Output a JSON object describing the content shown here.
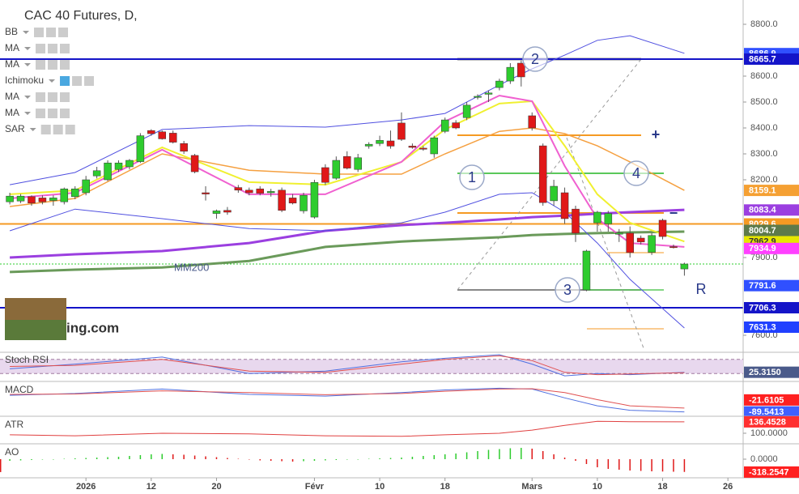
{
  "chart_data": {
    "type": "candlestick",
    "title": "CAC 40 Futures, D,",
    "indicators": [
      "BB",
      "MA",
      "MA",
      "Ichimoku",
      "MA",
      "MA",
      "SAR"
    ],
    "x": [
      0,
      1,
      2,
      3,
      4,
      5,
      6,
      7,
      8,
      9,
      10,
      11,
      12,
      13,
      14,
      15,
      16,
      17,
      18,
      19,
      20,
      21,
      22,
      23,
      24,
      25,
      26,
      27,
      28,
      29,
      30,
      31,
      32,
      33,
      34,
      35,
      36,
      37,
      38,
      39,
      40,
      41,
      42,
      43,
      44,
      45,
      46,
      47,
      48,
      49,
      50,
      51,
      52,
      53,
      54,
      55,
      56,
      57,
      58,
      59,
      60,
      61,
      62
    ],
    "open": [
      8115,
      8118,
      8135,
      8130,
      8120,
      8115,
      8135,
      8150,
      8215,
      8200,
      8240,
      8250,
      8270,
      8390,
      8385,
      8380,
      8340,
      8294,
      8150,
      8070,
      8082,
      8170,
      8160,
      8165,
      8150,
      8160,
      8130,
      8080,
      8056,
      8247,
      8206,
      8290,
      8240,
      8330,
      8340,
      8350,
      8419,
      8330,
      8322,
      8300,
      8387,
      8420,
      8440,
      8518,
      8530,
      8556,
      8581,
      8650,
      8447,
      8331,
      8119,
      8150,
      8087,
      7775,
      8034,
      8030,
      7990,
      7994,
      7975,
      7920,
      8044,
      7942,
      7856
    ],
    "high": [
      8150,
      8145,
      8140,
      8140,
      8140,
      8170,
      8175,
      8215,
      8250,
      8275,
      8275,
      8280,
      8380,
      8395,
      8390,
      8390,
      8350,
      8300,
      8175,
      8085,
      8095,
      8180,
      8170,
      8175,
      8165,
      8170,
      8145,
      8150,
      8200,
      8260,
      8290,
      8310,
      8300,
      8345,
      8370,
      8390,
      8460,
      8340,
      8330,
      8370,
      8440,
      8430,
      8500,
      8530,
      8545,
      8590,
      8650,
      8660,
      8460,
      8340,
      8200,
      8170,
      8100,
      7930,
      8080,
      8080,
      8010,
      8020,
      7985,
      7995,
      8050,
      7950,
      7880
    ],
    "low": [
      8105,
      8110,
      8100,
      8105,
      8100,
      8105,
      8125,
      8140,
      8205,
      8195,
      8230,
      8240,
      8265,
      8370,
      8355,
      8340,
      8300,
      8225,
      8120,
      8050,
      8065,
      8150,
      8140,
      8140,
      8135,
      8075,
      8105,
      8070,
      8050,
      8180,
      8200,
      8240,
      8230,
      8320,
      8330,
      8320,
      8350,
      8320,
      8312,
      8285,
      8380,
      8395,
      8430,
      8510,
      8500,
      8545,
      8570,
      8560,
      8390,
      8100,
      8100,
      8030,
      7960,
      7770,
      8000,
      8000,
      7960,
      7900,
      7950,
      7910,
      7970,
      7935,
      7830
    ],
    "close": [
      8137,
      8137,
      8110,
      8115,
      8130,
      8165,
      8165,
      8200,
      8235,
      8265,
      8265,
      8275,
      8370,
      8378,
      8358,
      8345,
      8310,
      8231,
      8145,
      8080,
      8075,
      8160,
      8150,
      8148,
      8155,
      8082,
      8110,
      8140,
      8190,
      8190,
      8275,
      8245,
      8285,
      8337,
      8352,
      8330,
      8356,
      8325,
      8318,
      8362,
      8431,
      8400,
      8488,
      8522,
      8535,
      8581,
      8634,
      8597,
      8400,
      8112,
      8175,
      8050,
      7994,
      7925,
      8075,
      8070,
      7995,
      7919,
      7960,
      7985,
      7981,
      7938,
      7875
    ],
    "up_color": "#2ecc2e",
    "down_color": "#e01818",
    "xlim": [
      -0.9,
      67.4
    ],
    "xticks": [
      {
        "value": 7,
        "label": "2026"
      },
      {
        "value": 13,
        "label": "12"
      },
      {
        "value": 19,
        "label": "20"
      },
      {
        "value": 28,
        "label": "Févr"
      },
      {
        "value": 34,
        "label": "10"
      },
      {
        "value": 40,
        "label": "18"
      },
      {
        "value": 48,
        "label": "Mars"
      },
      {
        "value": 54,
        "label": "10"
      },
      {
        "value": 60,
        "label": "18"
      },
      {
        "value": 66,
        "label": "26"
      }
    ],
    "ylim": [
      7550,
      8893.75
    ],
    "yticks": [
      {
        "value": 8800,
        "label": "8800.0"
      },
      {
        "value": 8600,
        "label": "8600.0"
      },
      {
        "value": 8500,
        "label": "8500.0"
      },
      {
        "value": 8400,
        "label": "8400.0"
      },
      {
        "value": 8300,
        "label": "8300.0"
      },
      {
        "value": 8200,
        "label": "8200.0"
      },
      {
        "value": 7900,
        "label": "7900.0"
      },
      {
        "value": 7600,
        "label": "7600.0"
      }
    ],
    "overlay_x": [
      0,
      6,
      14,
      22,
      29,
      36,
      40,
      45,
      48,
      51,
      54,
      57,
      62
    ],
    "overlays": [
      {
        "color": "#9b3fe0",
        "width": 3,
        "values": [
          7900,
          7912.5,
          7925,
          7956,
          8003,
          8025,
          8034,
          8047,
          8056,
          8062,
          8069,
          8075,
          8084
        ]
      },
      {
        "color": "#6a9a5a",
        "width": 3,
        "values": [
          7844,
          7853,
          7862,
          7887,
          7941,
          7962,
          7969,
          7978,
          7987,
          7991,
          7994,
          7997,
          8000
        ]
      },
      {
        "color": "#5050e0",
        "width": 1,
        "values": [
          8181,
          8228,
          8394,
          8409,
          8403,
          8431,
          8456,
          8566,
          8628,
          8681,
          8738,
          8756,
          8688
        ]
      },
      {
        "color": "#5050e0",
        "width": 1,
        "values": [
          8003,
          8087,
          8050,
          8012,
          8003,
          8034,
          8075,
          8144,
          8150,
          8075,
          7956,
          7816,
          7628
        ]
      },
      {
        "color": "#f5a040",
        "width": 1.5,
        "values": [
          8097,
          8128,
          8300,
          8237,
          8222,
          8222,
          8300,
          8387,
          8400,
          8378,
          8331,
          8269,
          8159
        ]
      },
      {
        "color": "#f0f030",
        "width": 2,
        "values": [
          8144,
          8159,
          8325,
          8191,
          8181,
          8269,
          8394,
          8494,
          8503,
          8331,
          8144,
          8034,
          7962
        ]
      },
      {
        "color": "#f060d0",
        "width": 2,
        "values": [
          8128,
          8150,
          8316,
          8144,
          8144,
          8269,
          8425,
          8525,
          8503,
          8253,
          8050,
          7956,
          7941
        ]
      }
    ],
    "levels": [
      {
        "value": 8665.7,
        "color": "#1414c8"
      },
      {
        "value": 7706.3,
        "color": "#1414c8"
      },
      {
        "value": 8029.6,
        "color": "#f59a23"
      }
    ],
    "price_labels": [
      {
        "value": 8686.9,
        "color": "#3050ff"
      },
      {
        "value": 8665.7,
        "color": "#1414c8"
      },
      {
        "value": 8159.1,
        "color": "#f5a033"
      },
      {
        "value": 8083.4,
        "color": "#9b3fe0"
      },
      {
        "value": 8029.6,
        "color": "#f59a23"
      },
      {
        "value": 7962.9,
        "color": "#e6e600"
      },
      {
        "value": 8004.7,
        "color": "#5d7a4a"
      },
      {
        "value": 7934.9,
        "color": "#ff40ff"
      },
      {
        "value": 7791.6,
        "color": "#3050ff"
      },
      {
        "value": 7706.3,
        "color": "#1414c8"
      },
      {
        "value": 7631.3,
        "color": "#2040ff"
      }
    ],
    "annotations": [
      "1",
      "2",
      "3",
      "4",
      "R",
      "+",
      "−",
      "MM200"
    ],
    "logo": "ing.com",
    "panes": [
      {
        "type": "line",
        "name": "Stoch RSI",
        "ylim": [
          0,
          100
        ],
        "band": [
          20,
          80
        ],
        "series": [
          {
            "color": "#5070e0",
            "values": [
              40,
              60,
              90,
              20,
              30,
              70,
              85,
              100,
              60,
              10,
              20,
              15,
              25.315
            ]
          },
          {
            "color": "#e05050",
            "values": [
              50,
              55,
              80,
              30,
              25,
              60,
              80,
              95,
              75,
              25,
              15,
              18,
              23
            ]
          }
        ],
        "price_labels": [
          {
            "value": 25.315,
            "label": "25.3150",
            "color": "#4a5a8a"
          }
        ]
      },
      {
        "type": "line",
        "name": "MACD",
        "ylim": [
          -105,
          65
        ],
        "series": [
          {
            "color": "#5070e0",
            "values": [
              5,
              15,
              40,
              10,
              0,
              20,
              35,
              45,
              40,
              -10,
              -55,
              -80,
              -89.5413
            ]
          },
          {
            "color": "#e05050",
            "values": [
              10,
              12,
              30,
              20,
              8,
              15,
              28,
              40,
              42,
              20,
              -20,
              -55,
              -67.9308
            ]
          }
        ],
        "price_labels": [
          {
            "value": -89.5413,
            "color": "#4060ff"
          },
          {
            "value": -21.6105,
            "color": "#ff2020"
          }
        ]
      },
      {
        "type": "line",
        "name": "ATR",
        "ylim": [
          74,
          144
        ],
        "series": [
          {
            "color": "#e04040",
            "values": [
              95,
              92,
              100,
              98,
              92,
              90,
              95,
              100,
              110,
              125,
              138,
              137,
              136.4528
            ]
          }
        ],
        "yticks": [
          {
            "value": 100,
            "label": "100.0000"
          }
        ],
        "price_labels": [
          {
            "value": 136.4528,
            "color": "#ff3030"
          }
        ]
      },
      {
        "type": "bar",
        "name": "AO",
        "ylim": [
          -400,
          300
        ],
        "values": [
          -40,
          -30,
          -20,
          -10,
          0,
          10,
          20,
          30,
          40,
          50,
          60,
          80,
          100,
          120,
          130,
          120,
          110,
          90,
          70,
          50,
          30,
          10,
          -10,
          -30,
          -40,
          -50,
          -60,
          -50,
          -40,
          -30,
          -20,
          -10,
          0,
          10,
          20,
          30,
          40,
          60,
          80,
          100,
          120,
          140,
          170,
          200,
          230,
          250,
          270,
          280,
          260,
          200,
          120,
          40,
          -40,
          -120,
          -200,
          -240,
          -260,
          -280,
          -290,
          -300,
          -305,
          -310,
          -315,
          -318.2547
        ],
        "yticks": [
          {
            "value": 0,
            "label": "0.0000"
          }
        ],
        "price_labels": [
          {
            "value": -318.2547,
            "color": "#ff2020"
          }
        ]
      }
    ]
  }
}
